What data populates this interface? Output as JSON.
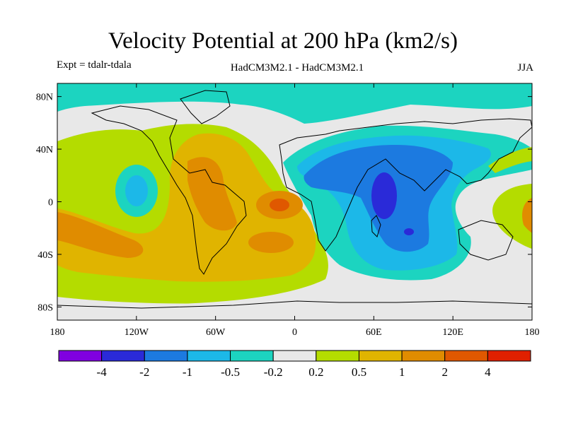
{
  "title": "Velocity Potential at 200 hPa (km2/s)",
  "subtitle_left": "Expt = tdalr-tdala",
  "subtitle_center": "HadCM3M2.1 - HadCM3M2.1",
  "subtitle_right": "JJA",
  "map": {
    "projection": "equirectangular",
    "lon_range": [
      -180,
      180
    ],
    "lat_range": [
      -90,
      90
    ],
    "x_tick_labels": [
      "180",
      "120W",
      "60W",
      "0",
      "60E",
      "120E",
      "180"
    ],
    "y_tick_labels": [
      "80N",
      "40N",
      "0",
      "40S",
      "80S"
    ],
    "background_color": "#e8e8e8",
    "coastlines": "black"
  },
  "colorbar": {
    "colors": [
      "#8000e0",
      "#2a2ad8",
      "#1c7ae0",
      "#1cb8e8",
      "#1cd4c0",
      "#e8e8e8",
      "#b4dc00",
      "#e0b400",
      "#e08c00",
      "#e05800",
      "#e02000"
    ],
    "labels": [
      "-4",
      "-2",
      "-1",
      "-0.5",
      "-0.2",
      "0.2",
      "0.5",
      "1",
      "2",
      "4"
    ]
  }
}
